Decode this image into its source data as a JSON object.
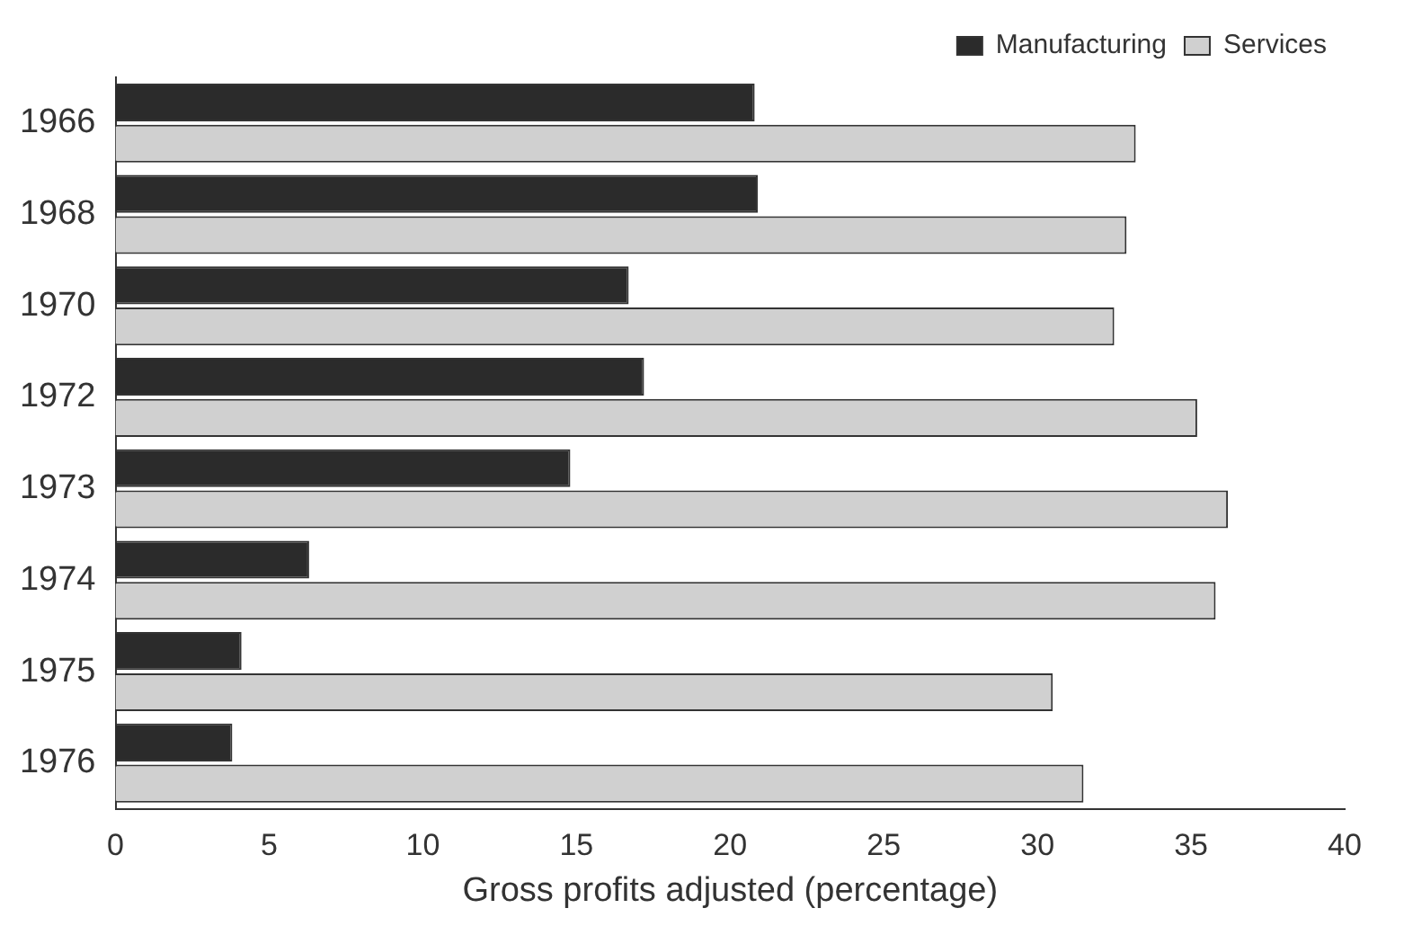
{
  "chart_data": {
    "type": "bar",
    "orientation": "horizontal",
    "xlabel": "Gross profits adjusted (percentage)",
    "categories": [
      "1966",
      "1968",
      "1970",
      "1972",
      "1973",
      "1974",
      "1975",
      "1976"
    ],
    "series": [
      {
        "name": "Manufacturing",
        "color": "#2b2b2b",
        "values": [
          20.8,
          20.9,
          16.7,
          17.2,
          14.8,
          6.3,
          4.1,
          3.8
        ]
      },
      {
        "name": "Services",
        "color": "#d0d0d0",
        "values": [
          33.2,
          32.9,
          32.5,
          35.2,
          36.2,
          35.8,
          30.5,
          31.5
        ]
      }
    ],
    "xlim": [
      0,
      40
    ],
    "xticks": [
      0,
      5,
      10,
      15,
      20,
      25,
      30,
      35,
      40
    ],
    "grid": false,
    "legend": "top right"
  }
}
